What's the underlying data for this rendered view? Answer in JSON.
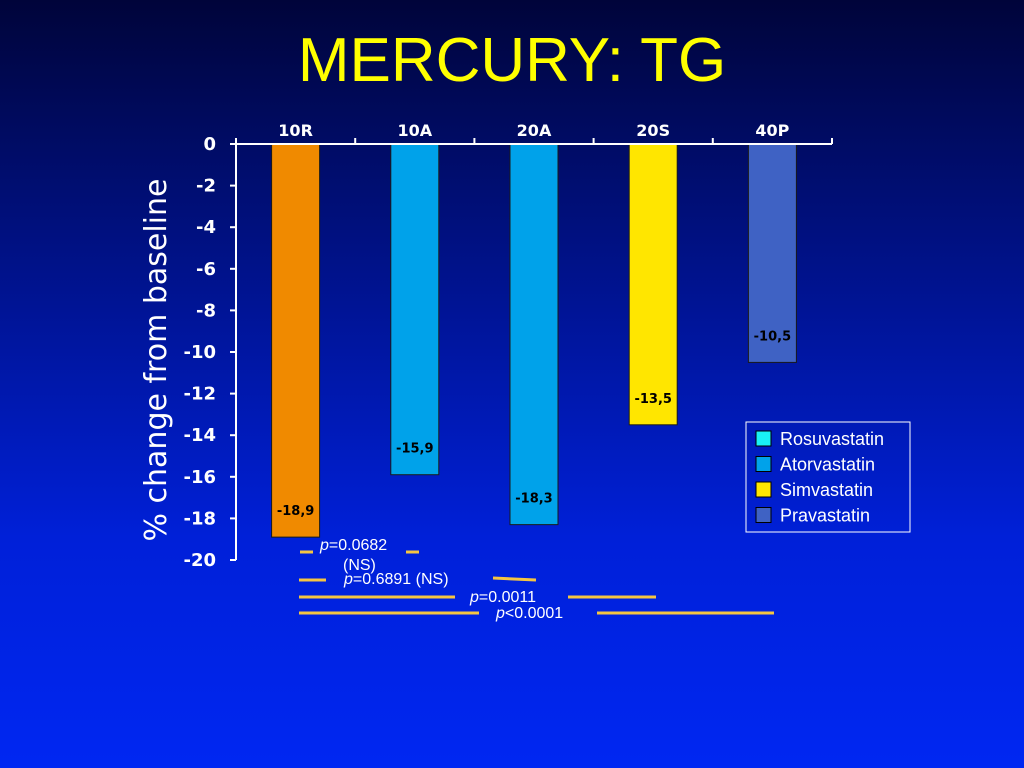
{
  "slide": {
    "title": "MERCURY: TG"
  },
  "chart_data": {
    "type": "bar",
    "categories": [
      "10R",
      "10A",
      "20A",
      "20S",
      "40P"
    ],
    "values": [
      -18.9,
      -15.9,
      -18.3,
      -13.5,
      -10.5
    ],
    "value_labels": [
      "-18,9",
      "-15,9",
      "-18,3",
      "-13,5",
      "-10,5"
    ],
    "bar_colors": [
      "#f08a00",
      "#00a2ea",
      "#00a2ea",
      "#ffe600",
      "#3f62c4"
    ],
    "ylabel": "% change from baseline",
    "ylim": [
      -20,
      0
    ],
    "yticks": [
      0,
      -2,
      -4,
      -6,
      -8,
      -10,
      -12,
      -14,
      -16,
      -18,
      -20
    ],
    "xaxis_position": "top",
    "grid": false,
    "legend": {
      "position": "right",
      "entries": [
        {
          "label": "Rosuvastatin",
          "color": "#19f0f5"
        },
        {
          "label": "Atorvastatin",
          "color": "#00a2ea"
        },
        {
          "label": "Simvastatin",
          "color": "#ffe600"
        },
        {
          "label": "Pravastatin",
          "color": "#3f62c4"
        }
      ]
    },
    "comparisons": [
      {
        "from": "10R",
        "to": "10A",
        "p_prefix": "p",
        "p_text": "=0.0682",
        "note": "(NS)"
      },
      {
        "from": "10R",
        "to": "20A",
        "p_prefix": "p",
        "p_text": "=0.6891 (NS)"
      },
      {
        "from": "10R",
        "to": "20S",
        "p_prefix": "p",
        "p_text": "=0.0011"
      },
      {
        "from": "10R",
        "to": "40P",
        "p_prefix": "p",
        "p_text": "<0.0001"
      }
    ]
  }
}
